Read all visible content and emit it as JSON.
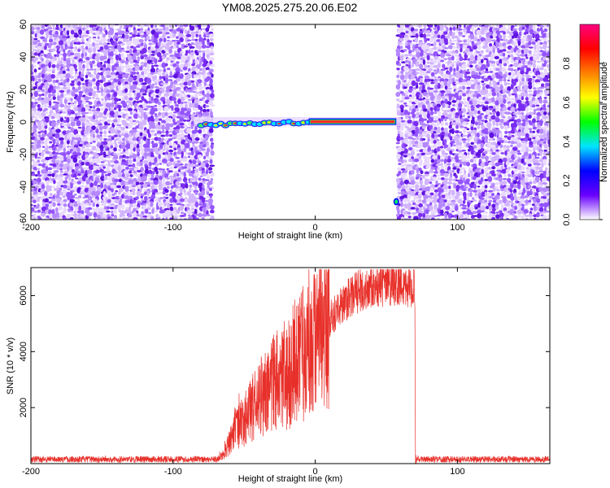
{
  "title": "YM08.2025.275.20.06.E02",
  "chart_data": [
    {
      "type": "heatmap",
      "title": "YM08.2025.275.20.06.E02",
      "xlabel": "Height of straight line (km)",
      "ylabel": "Frequency (Hz)",
      "xlim": [
        -200,
        165
      ],
      "ylim": [
        -60,
        60
      ],
      "xticks": [
        -200,
        -100,
        0,
        100
      ],
      "yticks": [
        -60,
        -40,
        -20,
        0,
        20,
        40,
        60
      ],
      "noise_regions_km": [
        [
          -200,
          -73
        ],
        [
          58,
          165
        ]
      ],
      "signal_band": {
        "x": [
          -82,
          57
        ],
        "center_hz": 0
      },
      "off_band_blip": {
        "x_km": 57,
        "freq_hz": -49
      },
      "colorbar": {
        "label": "Normalized spectral amplitude",
        "range": [
          0,
          1
        ],
        "ticks": [
          0.0,
          0.2,
          0.4,
          0.6,
          0.8
        ],
        "tick_labels": [
          "0.0",
          "0.2",
          "0.4",
          "0.6",
          "0.8"
        ],
        "colors": [
          "#ffffff",
          "#6a00ff",
          "#0000ff",
          "#00e5ff",
          "#00ff00",
          "#ffff00",
          "#ff8000",
          "#ff0000",
          "#ff0080"
        ]
      }
    },
    {
      "type": "line",
      "xlabel": "Height of straight line (km)",
      "ylabel": "SNR (10 * v/v)",
      "xlim": [
        -200,
        165
      ],
      "ylim": [
        0,
        7000
      ],
      "xticks": [
        -200,
        -100,
        0,
        100
      ],
      "yticks": [
        2000,
        4000,
        6000
      ],
      "color": "#e8302a",
      "series": [
        {
          "name": "SNR",
          "envelope_x": [
            -200,
            -72,
            -65,
            -60,
            -55,
            -50,
            -40,
            -30,
            -20,
            -10,
            0,
            10,
            20,
            30,
            40,
            50,
            60,
            70,
            70.5,
            165
          ],
          "envelope_y": [
            150,
            200,
            300,
            800,
            1300,
            1500,
            2300,
            2800,
            3200,
            3900,
            4300,
            5300,
            5900,
            6300,
            6500,
            6550,
            6550,
            6500,
            150,
            150
          ]
        }
      ]
    }
  ]
}
